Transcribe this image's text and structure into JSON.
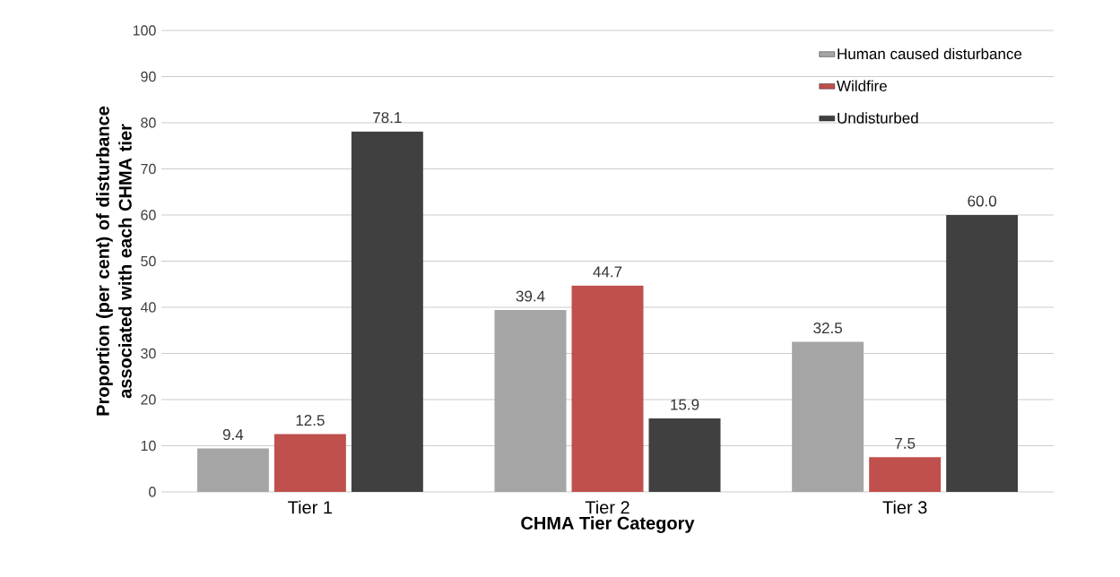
{
  "chart_data": {
    "type": "bar",
    "xlabel": "CHMA Tier Category",
    "ylabel": "Proportion (per cent) of disturbance associated with each CHMA tier",
    "categories": [
      "Tier 1",
      "Tier 2",
      "Tier 3"
    ],
    "series": [
      {
        "name": "Human caused disturbance",
        "color": "#a5a5a5",
        "values": [
          9.4,
          39.4,
          32.5
        ],
        "value_labels": [
          "9.4",
          "39.4",
          "32.5"
        ]
      },
      {
        "name": "Wildfire",
        "color": "#c0504d",
        "values": [
          12.5,
          44.7,
          7.5
        ],
        "value_labels": [
          "12.5",
          "44.7",
          "7.5"
        ]
      },
      {
        "name": "Undisturbed",
        "color": "#404040",
        "values": [
          78.1,
          15.9,
          60.0
        ],
        "value_labels": [
          "78.1",
          "15.9",
          "60.0"
        ]
      }
    ],
    "ylim": [
      0,
      100
    ],
    "yticks": [
      0,
      10,
      20,
      30,
      40,
      50,
      60,
      70,
      80,
      90,
      100
    ],
    "grid": "y",
    "legend": "top right"
  }
}
